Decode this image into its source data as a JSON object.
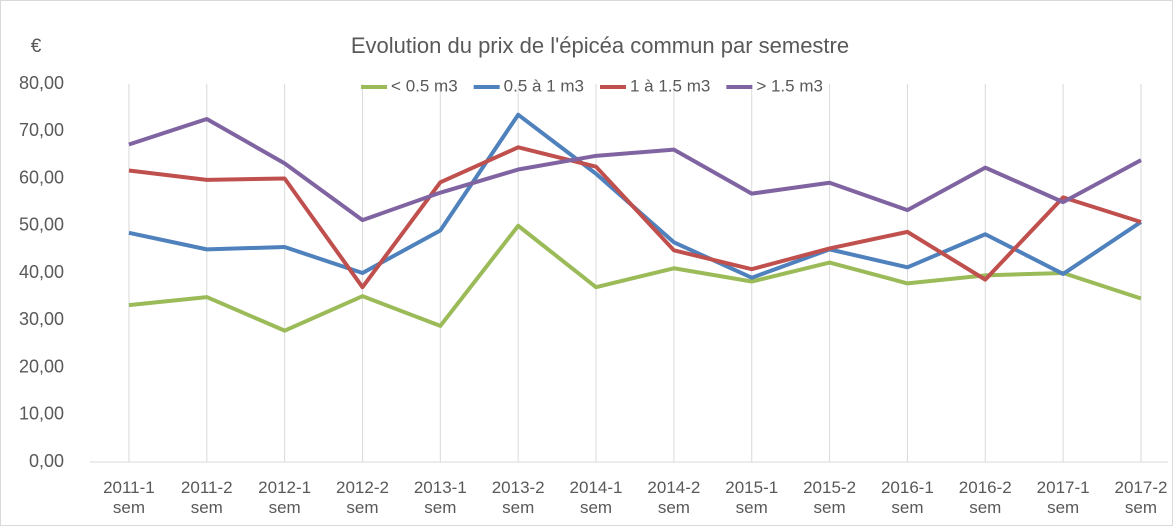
{
  "chart_data": {
    "type": "line",
    "title": "Evolution du prix de l'épicéa commun par semestre",
    "y_label": "€",
    "categories": [
      "2011-1 sem",
      "2011-2 sem",
      "2012-1 sem",
      "2012-2 sem",
      "2013-1 sem",
      "2013-2 sem",
      "2014-1 sem",
      "2014-2 sem",
      "2015-1 sem",
      "2015-2 sem",
      "2016-1 sem",
      "2016-2 sem",
      "2017-1 sem",
      "2017-2 sem"
    ],
    "series": [
      {
        "name": "< 0.5 m3",
        "color": "#9bbb59",
        "values": [
          33.2,
          34.9,
          27.8,
          35.1,
          28.8,
          50.0,
          37.0,
          41.0,
          38.2,
          42.2,
          37.8,
          39.5,
          40.0,
          34.6
        ]
      },
      {
        "name": "0.5 à 1 m3",
        "color": "#4f81bd",
        "values": [
          48.5,
          45.0,
          45.5,
          40.0,
          49.0,
          73.5,
          61.0,
          46.5,
          39.0,
          45.0,
          41.2,
          48.2,
          39.8,
          50.8
        ]
      },
      {
        "name": "1 à 1.5 m3",
        "color": "#c0504d",
        "values": [
          61.7,
          59.7,
          60.0,
          37.0,
          59.2,
          66.6,
          62.5,
          44.8,
          40.8,
          45.2,
          48.7,
          38.6,
          56.0,
          50.8
        ]
      },
      {
        "name": "> 1.5 m3",
        "color": "#8064a2",
        "values": [
          67.2,
          72.6,
          63.2,
          51.2,
          57.0,
          61.9,
          64.8,
          66.1,
          56.8,
          59.1,
          53.3,
          62.3,
          55.0,
          63.9
        ]
      }
    ],
    "ylim": [
      0,
      80
    ],
    "yticks": [
      {
        "value": 0,
        "label": "0,00"
      },
      {
        "value": 10,
        "label": "10,00"
      },
      {
        "value": 20,
        "label": "20,00"
      },
      {
        "value": 30,
        "label": "30,00"
      },
      {
        "value": 40,
        "label": "40,00"
      },
      {
        "value": 50,
        "label": "50,00"
      },
      {
        "value": 60,
        "label": "60,00"
      },
      {
        "value": 70,
        "label": "70,00"
      },
      {
        "value": 80,
        "label": "80,00"
      }
    ],
    "grid": "x",
    "legend": "top"
  }
}
